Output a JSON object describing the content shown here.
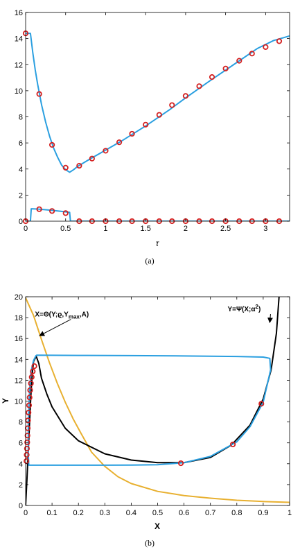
{
  "chart_data": [
    {
      "type": "line",
      "caption": "(a)",
      "xlabel": "τ",
      "ylabel": "",
      "xlim": [
        0,
        3.3
      ],
      "ylim": [
        0,
        16
      ],
      "xticks": [
        0,
        0.5,
        1,
        1.5,
        2,
        2.5,
        3
      ],
      "xtick_labels": [
        "0",
        "0.5",
        "1",
        "1.5",
        "2",
        "2.5",
        "3"
      ],
      "yticks": [
        0,
        2,
        4,
        6,
        8,
        10,
        12,
        14,
        16
      ],
      "ytick_labels": [
        "0",
        "2",
        "4",
        "6",
        "8",
        "10",
        "12",
        "14",
        "16"
      ],
      "grid": false,
      "series": [
        {
          "color": "#2a9fe0",
          "style": "line",
          "x": [
            0,
            0.06,
            0.09,
            0.12,
            0.15,
            0.2,
            0.25,
            0.3,
            0.35,
            0.4,
            0.45,
            0.5,
            0.55,
            0.6,
            0.65,
            0.8,
            1.0,
            1.2,
            1.5,
            1.8,
            2.0,
            2.3,
            2.6,
            2.9,
            3.1,
            3.3
          ],
          "y": [
            14.4,
            14.4,
            12.9,
            11.6,
            10.5,
            8.9,
            7.6,
            6.5,
            5.6,
            4.9,
            4.3,
            3.95,
            3.75,
            3.95,
            4.2,
            4.75,
            5.45,
            6.15,
            7.3,
            8.55,
            9.45,
            10.75,
            12.0,
            13.25,
            13.85,
            14.2
          ]
        },
        {
          "color": "#2a9fe0",
          "style": "line",
          "x": [
            0,
            0.06,
            0.07,
            0.15,
            0.3,
            0.45,
            0.55,
            0.56,
            3.3
          ],
          "y": [
            0,
            0,
            0.95,
            0.93,
            0.85,
            0.75,
            0.68,
            0,
            0
          ]
        },
        {
          "color": "#d42020",
          "style": "markers",
          "x": [
            0,
            0.17,
            0.33,
            0.5,
            0.67,
            0.83,
            1.0,
            1.17,
            1.33,
            1.5,
            1.67,
            1.83,
            2.0,
            2.17,
            2.33,
            2.5,
            2.67,
            2.83,
            3.0,
            3.17
          ],
          "y": [
            14.4,
            9.75,
            5.85,
            4.1,
            4.25,
            4.8,
            5.4,
            6.05,
            6.7,
            7.4,
            8.15,
            8.9,
            9.6,
            10.35,
            11.05,
            11.7,
            12.3,
            12.85,
            13.35,
            13.8
          ]
        },
        {
          "color": "#d42020",
          "style": "markers",
          "x": [
            0,
            0.17,
            0.33,
            0.5,
            0.67,
            0.83,
            1.0,
            1.17,
            1.33,
            1.5,
            1.67,
            1.83,
            2.0,
            2.17,
            2.33,
            2.5,
            2.67,
            2.83,
            3.0,
            3.17
          ],
          "y": [
            0,
            0.92,
            0.78,
            0.62,
            0,
            0,
            0,
            0,
            0,
            0,
            0,
            0,
            0,
            0,
            0,
            0,
            0,
            0,
            0,
            0
          ]
        }
      ]
    },
    {
      "type": "line",
      "caption": "(b)",
      "xlabel": "X",
      "ylabel": "Y",
      "xlim": [
        0,
        1
      ],
      "ylim": [
        0,
        20
      ],
      "xticks": [
        0,
        0.1,
        0.2,
        0.3,
        0.4,
        0.5,
        0.6,
        0.7,
        0.8,
        0.9,
        1
      ],
      "xtick_labels": [
        "0",
        "0.1",
        "0.2",
        "0.3",
        "0.4",
        "0.5",
        "0.6",
        "0.7",
        "0.8",
        "0.9",
        "1"
      ],
      "yticks": [
        0,
        2,
        4,
        6,
        8,
        10,
        12,
        14,
        16,
        18,
        20
      ],
      "ytick_labels": [
        "0",
        "2",
        "4",
        "6",
        "8",
        "10",
        "12",
        "14",
        "16",
        "18",
        "20"
      ],
      "grid": false,
      "annotations": [
        {
          "text": "X=Θ(Y;ϱ,Y_max,A)",
          "x": 0.035,
          "y": 18.1,
          "arrow_to": [
            0.055,
            16.3
          ]
        },
        {
          "text": "Y=Ψ(X;α²)",
          "x": 0.765,
          "y": 18.6,
          "arrow_to": [
            0.925,
            17.6
          ]
        }
      ],
      "series": [
        {
          "color": "#e8b030",
          "style": "line",
          "x": [
            0,
            0.03,
            0.06,
            0.09,
            0.12,
            0.15,
            0.18,
            0.21,
            0.25,
            0.3,
            0.35,
            0.4,
            0.5,
            0.6,
            0.7,
            0.8,
            0.9,
            1.0
          ],
          "y": [
            19.9,
            18.2,
            15.9,
            13.7,
            11.7,
            9.9,
            8.3,
            6.9,
            5.1,
            3.75,
            2.75,
            2.1,
            1.35,
            0.95,
            0.7,
            0.5,
            0.38,
            0.3
          ]
        },
        {
          "color": "#000000",
          "style": "line",
          "x": [
            0,
            0.005,
            0.01,
            0.015,
            0.02,
            0.025,
            0.03,
            0.04,
            0.05,
            0.06,
            0.08,
            0.1,
            0.15,
            0.2,
            0.3,
            0.4,
            0.5,
            0.6,
            0.7,
            0.78,
            0.85,
            0.9,
            0.93,
            0.95,
            0.96
          ],
          "y": [
            0,
            2.5,
            5.2,
            8.0,
            10.6,
            12.6,
            13.8,
            14.3,
            13.6,
            12.2,
            10.7,
            9.45,
            7.4,
            6.2,
            4.95,
            4.35,
            4.1,
            4.1,
            4.6,
            5.8,
            7.7,
            10.2,
            13.0,
            16.5,
            20
          ]
        },
        {
          "color": "#2a9fe0",
          "style": "line",
          "x": [
            0.04,
            0.2,
            0.4,
            0.6,
            0.8,
            0.9,
            0.925,
            0.928,
            0.9,
            0.85,
            0.8,
            0.7,
            0.6,
            0.5,
            0.4,
            0.3,
            0.2,
            0.1,
            0.03,
            0.012,
            0.01,
            0.01,
            0.015,
            0.02,
            0.03,
            0.04
          ],
          "y": [
            14.4,
            14.38,
            14.36,
            14.33,
            14.28,
            14.22,
            14.1,
            13.0,
            9.9,
            7.55,
            6.1,
            4.7,
            4.1,
            3.9,
            3.87,
            3.86,
            3.86,
            3.86,
            3.86,
            3.86,
            5.0,
            8.0,
            11.0,
            12.8,
            13.9,
            14.4
          ]
        },
        {
          "color": "#d42020",
          "style": "markers",
          "x": [
            0.003,
            0.004,
            0.005,
            0.006,
            0.007,
            0.008,
            0.009,
            0.011,
            0.013,
            0.015,
            0.017,
            0.02,
            0.023,
            0.027,
            0.033,
            0.588,
            0.785,
            0.893
          ],
          "y": [
            4.25,
            4.85,
            5.45,
            6.05,
            6.7,
            7.4,
            8.15,
            8.9,
            9.6,
            10.35,
            11.05,
            11.7,
            12.3,
            12.85,
            13.35,
            4.05,
            5.85,
            9.75
          ]
        }
      ]
    }
  ]
}
